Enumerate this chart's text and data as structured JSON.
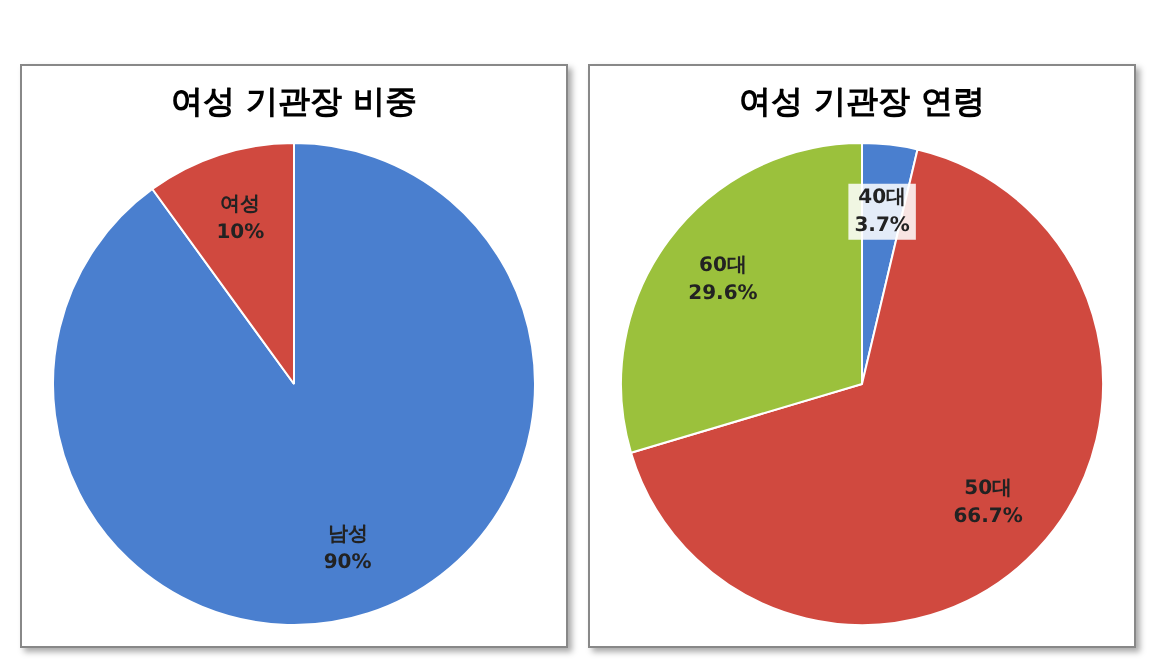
{
  "chart_data": [
    {
      "type": "pie",
      "title": "여성 기관장 비중",
      "categories": [
        "남성",
        "여성"
      ],
      "values": [
        90,
        10
      ],
      "colors": [
        "#4a7fcf",
        "#d0493f"
      ],
      "value_labels": [
        "90%",
        "10%"
      ]
    },
    {
      "type": "pie",
      "title": "여성 기관장 연령",
      "categories": [
        "40대",
        "50대",
        "60대"
      ],
      "values": [
        3.7,
        66.7,
        29.6
      ],
      "colors": [
        "#4a7fcf",
        "#d0493f",
        "#9bc13c"
      ],
      "value_labels": [
        "3.7%",
        "66.7%",
        "29.6%"
      ]
    }
  ]
}
